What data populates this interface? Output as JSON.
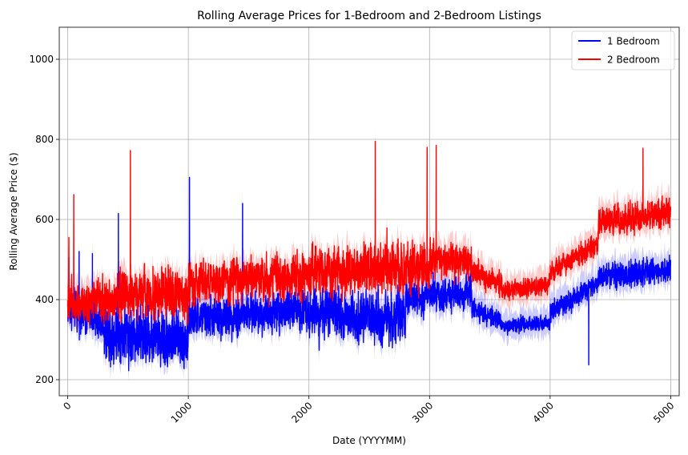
{
  "chart_data": {
    "type": "line",
    "title": "Rolling Average Prices for 1-Bedroom and 2-Bedroom Listings",
    "xlabel": "Date (YYYYMM)",
    "ylabel": "Rolling Average Price ($)",
    "xlim": [
      -70,
      5070
    ],
    "ylim": [
      160,
      1080
    ],
    "xticks": [
      0,
      1000,
      2000,
      3000,
      4000,
      5000
    ],
    "xtick_labels": [
      "0",
      "1000",
      "2000",
      "3000",
      "4000",
      "5000"
    ],
    "yticks": [
      200,
      400,
      600,
      800,
      1000
    ],
    "ytick_labels": [
      "200",
      "400",
      "600",
      "800",
      "1000"
    ],
    "xtick_rotation_deg": 45,
    "grid": true,
    "legend_position": "top-right",
    "x_points": 5000,
    "series": [
      {
        "name": "1 Bedroom",
        "color": "#0000ff",
        "band_color": "#0000ff",
        "band_opacity": 0.2,
        "segments": [
          {
            "x": [
              0,
              300
            ],
            "y": [
              380,
              340
            ],
            "noise": 55
          },
          {
            "x": [
              300,
              1000
            ],
            "y": [
              320,
              300
            ],
            "noise": 85
          },
          {
            "x": [
              1000,
              2000
            ],
            "y": [
              350,
              380
            ],
            "noise": 60
          },
          {
            "x": [
              2000,
              2800
            ],
            "y": [
              370,
              350
            ],
            "noise": 75
          },
          {
            "x": [
              2800,
              3350
            ],
            "y": [
              400,
              420
            ],
            "noise": 50
          },
          {
            "x": [
              3350,
              3600
            ],
            "y": [
              380,
              340
            ],
            "noise": 30
          },
          {
            "x": [
              3600,
              4000
            ],
            "y": [
              335,
              345
            ],
            "noise": 22
          },
          {
            "x": [
              4000,
              4400
            ],
            "y": [
              370,
              440
            ],
            "noise": 30
          },
          {
            "x": [
              4400,
              5000
            ],
            "y": [
              460,
              470
            ],
            "noise": 40
          }
        ],
        "spikes": [
          {
            "x": 10,
            "y": 505
          },
          {
            "x": 95,
            "y": 520
          },
          {
            "x": 205,
            "y": 515
          },
          {
            "x": 420,
            "y": 615
          },
          {
            "x": 1010,
            "y": 705
          },
          {
            "x": 1450,
            "y": 640
          },
          {
            "x": 4320,
            "y": 237
          }
        ]
      },
      {
        "name": "2 Bedroom",
        "color": "#ff0000",
        "band_color": "#ff0000",
        "band_opacity": 0.2,
        "segments": [
          {
            "x": [
              0,
              400
            ],
            "y": [
              400,
              390
            ],
            "noise": 60
          },
          {
            "x": [
              400,
              1000
            ],
            "y": [
              420,
              410
            ],
            "noise": 70
          },
          {
            "x": [
              1000,
              2000
            ],
            "y": [
              440,
              460
            ],
            "noise": 65
          },
          {
            "x": [
              2000,
              3000
            ],
            "y": [
              470,
              480
            ],
            "noise": 75
          },
          {
            "x": [
              3000,
              3350
            ],
            "y": [
              500,
              500
            ],
            "noise": 55
          },
          {
            "x": [
              3350,
              3600
            ],
            "y": [
              470,
              440
            ],
            "noise": 35
          },
          {
            "x": [
              3600,
              4000
            ],
            "y": [
              420,
              440
            ],
            "noise": 28
          },
          {
            "x": [
              4000,
              4400
            ],
            "y": [
              470,
              540
            ],
            "noise": 32
          },
          {
            "x": [
              4400,
              5000
            ],
            "y": [
              590,
              620
            ],
            "noise": 45
          }
        ],
        "spikes": [
          {
            "x": 10,
            "y": 555
          },
          {
            "x": 50,
            "y": 662
          },
          {
            "x": 520,
            "y": 772
          },
          {
            "x": 2550,
            "y": 795
          },
          {
            "x": 2980,
            "y": 780
          },
          {
            "x": 3055,
            "y": 785
          },
          {
            "x": 4770,
            "y": 778
          }
        ]
      }
    ]
  }
}
